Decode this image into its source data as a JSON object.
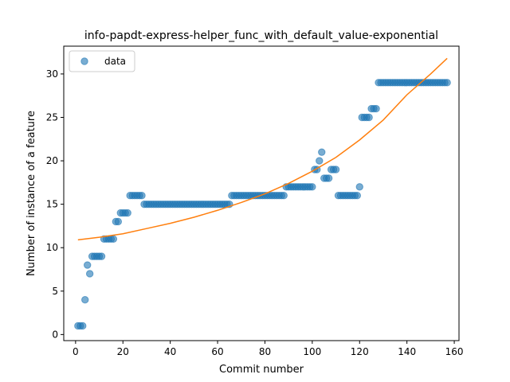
{
  "chart_data": {
    "type": "scatter",
    "title": "info-papdt-express-helper_func_with_default_value-exponential",
    "xlabel": "Commit number",
    "ylabel": "Number of instance of a feature",
    "xlim": [
      -5,
      162
    ],
    "ylim": [
      -0.7,
      33.2
    ],
    "xticks": [
      0,
      20,
      40,
      60,
      80,
      100,
      120,
      140,
      160
    ],
    "yticks": [
      0,
      5,
      10,
      15,
      20,
      25,
      30
    ],
    "grid": false,
    "legend": {
      "position": "top-left",
      "entries": [
        "data"
      ]
    },
    "colors": {
      "data": "#1f77b4",
      "fit": "#ff7f0e"
    },
    "series": [
      {
        "name": "data",
        "kind": "scatter",
        "points": [
          [
            1,
            1
          ],
          [
            2,
            1
          ],
          [
            3,
            1
          ],
          [
            4,
            4
          ],
          [
            5,
            8
          ],
          [
            6,
            7
          ],
          [
            7,
            9
          ],
          [
            8,
            9
          ],
          [
            9,
            9
          ],
          [
            10,
            9
          ],
          [
            11,
            9
          ],
          [
            12,
            11
          ],
          [
            13,
            11
          ],
          [
            14,
            11
          ],
          [
            15,
            11
          ],
          [
            16,
            11
          ],
          [
            17,
            13
          ],
          [
            18,
            13
          ],
          [
            19,
            14
          ],
          [
            20,
            14
          ],
          [
            21,
            14
          ],
          [
            22,
            14
          ],
          [
            23,
            16
          ],
          [
            24,
            16
          ],
          [
            25,
            16
          ],
          [
            26,
            16
          ],
          [
            27,
            16
          ],
          [
            28,
            16
          ],
          [
            29,
            15
          ],
          [
            30,
            15
          ],
          [
            31,
            15
          ],
          [
            32,
            15
          ],
          [
            33,
            15
          ],
          [
            34,
            15
          ],
          [
            35,
            15
          ],
          [
            36,
            15
          ],
          [
            37,
            15
          ],
          [
            38,
            15
          ],
          [
            39,
            15
          ],
          [
            40,
            15
          ],
          [
            41,
            15
          ],
          [
            42,
            15
          ],
          [
            43,
            15
          ],
          [
            44,
            15
          ],
          [
            45,
            15
          ],
          [
            46,
            15
          ],
          [
            47,
            15
          ],
          [
            48,
            15
          ],
          [
            49,
            15
          ],
          [
            50,
            15
          ],
          [
            51,
            15
          ],
          [
            52,
            15
          ],
          [
            53,
            15
          ],
          [
            54,
            15
          ],
          [
            55,
            15
          ],
          [
            56,
            15
          ],
          [
            57,
            15
          ],
          [
            58,
            15
          ],
          [
            59,
            15
          ],
          [
            60,
            15
          ],
          [
            61,
            15
          ],
          [
            62,
            15
          ],
          [
            63,
            15
          ],
          [
            64,
            15
          ],
          [
            65,
            15
          ],
          [
            66,
            16
          ],
          [
            67,
            16
          ],
          [
            68,
            16
          ],
          [
            69,
            16
          ],
          [
            70,
            16
          ],
          [
            71,
            16
          ],
          [
            72,
            16
          ],
          [
            73,
            16
          ],
          [
            74,
            16
          ],
          [
            75,
            16
          ],
          [
            76,
            16
          ],
          [
            77,
            16
          ],
          [
            78,
            16
          ],
          [
            79,
            16
          ],
          [
            80,
            16
          ],
          [
            81,
            16
          ],
          [
            82,
            16
          ],
          [
            83,
            16
          ],
          [
            84,
            16
          ],
          [
            85,
            16
          ],
          [
            86,
            16
          ],
          [
            87,
            16
          ],
          [
            88,
            16
          ],
          [
            89,
            17
          ],
          [
            90,
            17
          ],
          [
            91,
            17
          ],
          [
            92,
            17
          ],
          [
            93,
            17
          ],
          [
            94,
            17
          ],
          [
            95,
            17
          ],
          [
            96,
            17
          ],
          [
            97,
            17
          ],
          [
            98,
            17
          ],
          [
            99,
            17
          ],
          [
            100,
            17
          ],
          [
            101,
            19
          ],
          [
            102,
            19
          ],
          [
            103,
            20
          ],
          [
            104,
            21
          ],
          [
            105,
            18
          ],
          [
            106,
            18
          ],
          [
            107,
            18
          ],
          [
            108,
            19
          ],
          [
            109,
            19
          ],
          [
            110,
            19
          ],
          [
            111,
            16
          ],
          [
            112,
            16
          ],
          [
            113,
            16
          ],
          [
            114,
            16
          ],
          [
            115,
            16
          ],
          [
            116,
            16
          ],
          [
            117,
            16
          ],
          [
            118,
            16
          ],
          [
            119,
            16
          ],
          [
            120,
            17
          ],
          [
            121,
            25
          ],
          [
            122,
            25
          ],
          [
            123,
            25
          ],
          [
            124,
            25
          ],
          [
            125,
            26
          ],
          [
            126,
            26
          ],
          [
            127,
            26
          ],
          [
            128,
            29
          ],
          [
            129,
            29
          ],
          [
            130,
            29
          ],
          [
            131,
            29
          ],
          [
            132,
            29
          ],
          [
            133,
            29
          ],
          [
            134,
            29
          ],
          [
            135,
            29
          ],
          [
            136,
            29
          ],
          [
            137,
            29
          ],
          [
            138,
            29
          ],
          [
            139,
            29
          ],
          [
            140,
            29
          ],
          [
            141,
            29
          ],
          [
            142,
            29
          ],
          [
            143,
            29
          ],
          [
            144,
            29
          ],
          [
            145,
            29
          ],
          [
            146,
            29
          ],
          [
            147,
            29
          ],
          [
            148,
            29
          ],
          [
            149,
            29
          ],
          [
            150,
            29
          ],
          [
            151,
            29
          ],
          [
            152,
            29
          ],
          [
            153,
            29
          ],
          [
            154,
            29
          ],
          [
            155,
            29
          ],
          [
            156,
            29
          ],
          [
            157,
            29
          ]
        ]
      },
      {
        "kind": "line",
        "points": [
          [
            1,
            10.9
          ],
          [
            10,
            11.2
          ],
          [
            20,
            11.6
          ],
          [
            30,
            12.2
          ],
          [
            40,
            12.8
          ],
          [
            50,
            13.5
          ],
          [
            60,
            14.3
          ],
          [
            70,
            15.2
          ],
          [
            80,
            16.2
          ],
          [
            90,
            17.4
          ],
          [
            100,
            18.8
          ],
          [
            110,
            20.4
          ],
          [
            120,
            22.4
          ],
          [
            130,
            24.7
          ],
          [
            140,
            27.6
          ],
          [
            150,
            30.0
          ],
          [
            157,
            31.8
          ]
        ]
      }
    ]
  }
}
